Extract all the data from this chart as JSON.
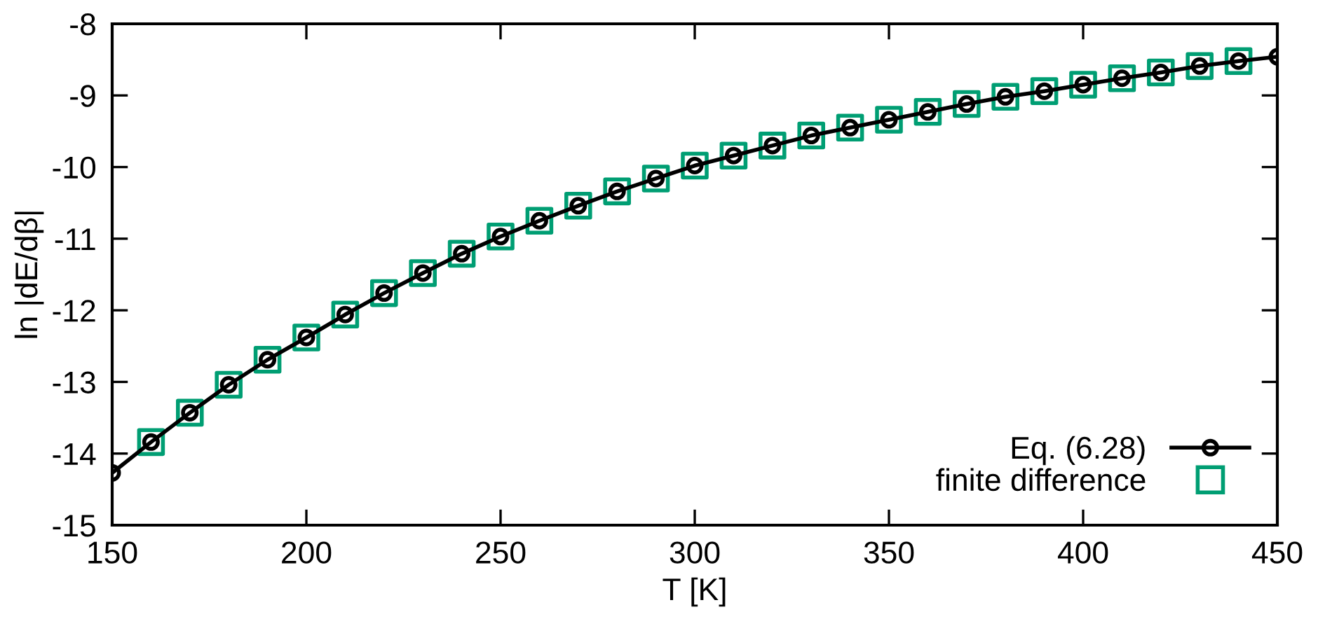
{
  "chart_data": {
    "type": "line",
    "xlabel": "T [K]",
    "ylabel": "ln |dE/dβ|",
    "xlim": [
      150,
      450
    ],
    "xticks": [
      150,
      200,
      250,
      300,
      350,
      400,
      450
    ],
    "ylim": [
      -15,
      -8
    ],
    "yticks": [
      -15,
      -14,
      -13,
      -12,
      -11,
      -10,
      -9,
      -8
    ],
    "grid": false,
    "legend": "bottom right",
    "series": [
      {
        "name": "Eq. (6.28)",
        "marker": "circle",
        "line_style": "solid",
        "color": "#000000",
        "x": [
          150,
          160,
          170,
          180,
          190,
          200,
          210,
          220,
          230,
          240,
          250,
          260,
          270,
          280,
          290,
          300,
          310,
          320,
          330,
          340,
          350,
          360,
          370,
          380,
          390,
          400,
          410,
          420,
          430,
          440,
          450
        ],
        "values": [
          -14.27,
          -13.84,
          -13.43,
          -13.04,
          -12.69,
          -12.38,
          -12.06,
          -11.76,
          -11.48,
          -11.21,
          -10.97,
          -10.75,
          -10.54,
          -10.34,
          -10.16,
          -9.98,
          -9.84,
          -9.7,
          -9.56,
          -9.45,
          -9.34,
          -9.23,
          -9.12,
          -9.02,
          -8.94,
          -8.85,
          -8.76,
          -8.68,
          -8.59,
          -8.52,
          -8.46
        ]
      },
      {
        "name": "finite difference",
        "type": "scatter",
        "marker": "square",
        "color": "#009e73",
        "x": [
          160,
          170,
          180,
          190,
          200,
          210,
          220,
          230,
          240,
          250,
          260,
          270,
          280,
          290,
          300,
          310,
          320,
          330,
          340,
          350,
          360,
          370,
          380,
          390,
          400,
          410,
          420,
          430,
          440
        ],
        "values": [
          -13.84,
          -13.43,
          -13.04,
          -12.69,
          -12.38,
          -12.06,
          -11.76,
          -11.48,
          -11.21,
          -10.97,
          -10.75,
          -10.54,
          -10.34,
          -10.16,
          -9.98,
          -9.84,
          -9.7,
          -9.56,
          -9.45,
          -9.34,
          -9.23,
          -9.12,
          -9.02,
          -8.94,
          -8.85,
          -8.76,
          -8.68,
          -8.59,
          -8.52
        ]
      }
    ]
  }
}
